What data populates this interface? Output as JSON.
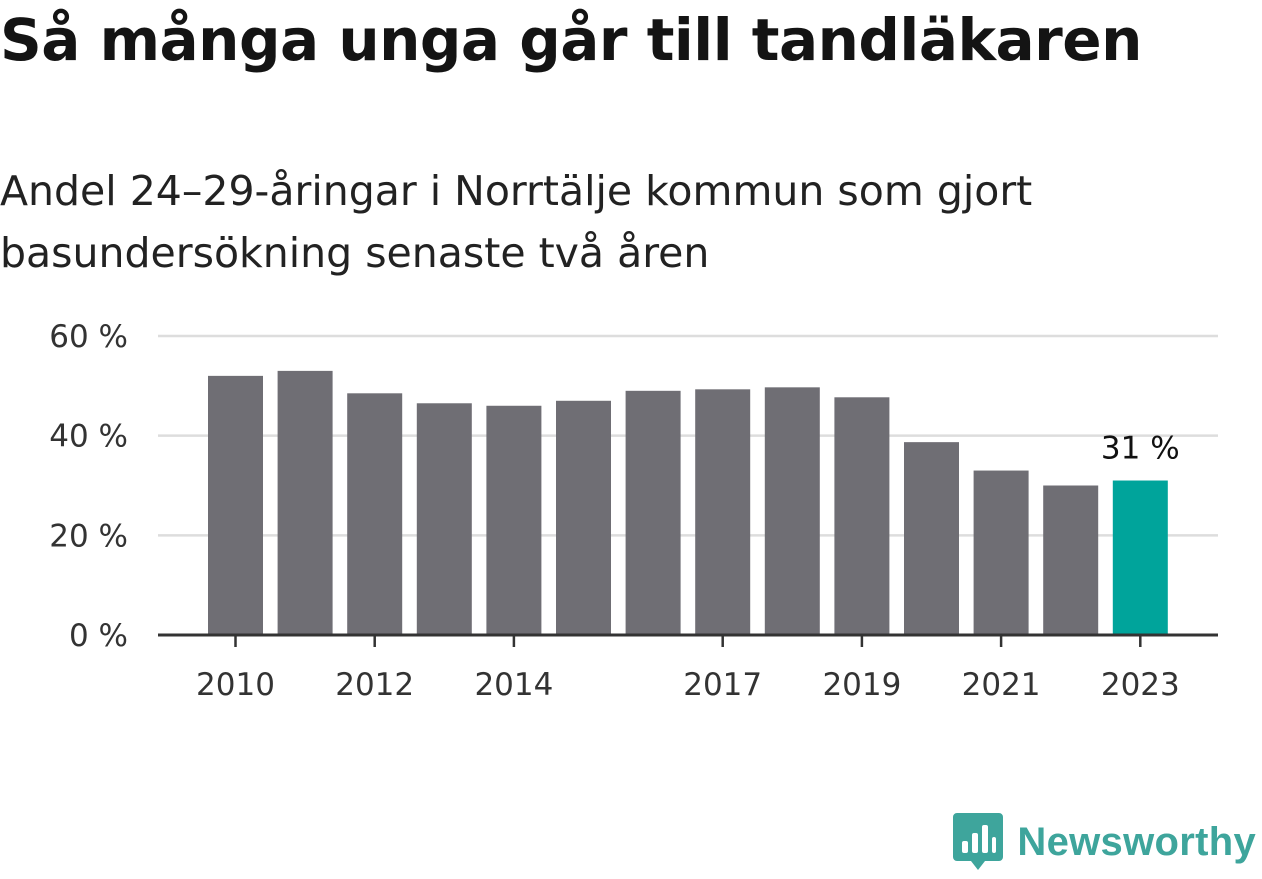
{
  "title": "Så många unga går till tandläkaren",
  "subtitle": "Andel 24–29-åringar i Norrtälje kommun som gjort basundersökning senaste två åren",
  "brand": {
    "name": "Newsworthy",
    "icon": "newsworthy-logo-icon",
    "color": "#3ea59c"
  },
  "colors": {
    "bar": "#6f6e74",
    "highlight": "#00a49b",
    "grid": "#dddddd",
    "axis": "#333333"
  },
  "chart_data": {
    "type": "bar",
    "categories": [
      2010,
      2011,
      2012,
      2013,
      2014,
      2015,
      2016,
      2017,
      2018,
      2019,
      2020,
      2021,
      2022,
      2023
    ],
    "values": [
      52,
      53,
      48.5,
      46.5,
      46,
      47,
      49,
      49.3,
      49.7,
      47.7,
      38.7,
      33,
      30,
      31
    ],
    "highlight_index": 13,
    "x_tick_labels": [
      "2010",
      "2012",
      "2014",
      "2017",
      "2019",
      "2021",
      "2023"
    ],
    "y_ticks": [
      0,
      20,
      40,
      60
    ],
    "y_tick_labels": [
      "0 %",
      "20 %",
      "40 %",
      "60 %"
    ],
    "ylim": [
      0,
      60
    ],
    "grid": true,
    "data_labels": [
      {
        "index": 13,
        "text": "31 %"
      }
    ]
  }
}
